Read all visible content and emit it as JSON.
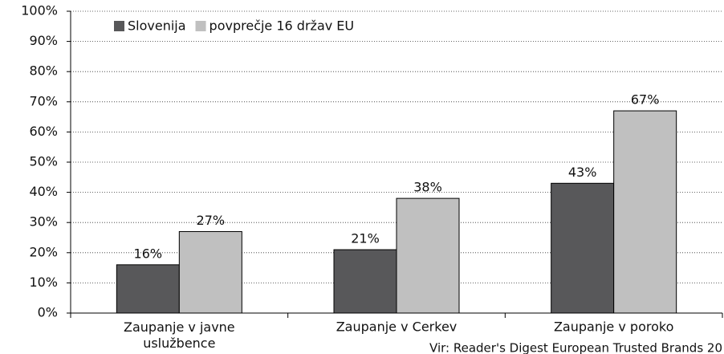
{
  "chart_data": {
    "type": "bar",
    "categories": [
      "Zaupanje v javne uslužbence",
      "Zaupanje v Cerkev",
      "Zaupanje v poroko"
    ],
    "series": [
      {
        "name": "Slovenija",
        "color": "#58585a",
        "values": [
          16,
          21,
          43
        ],
        "value_labels": [
          "16%",
          "21%",
          "43%"
        ]
      },
      {
        "name": "povprečje 16 držav EU",
        "color": "#c0c0c0",
        "values": [
          27,
          38,
          67
        ],
        "value_labels": [
          "27%",
          "38%",
          "67%"
        ]
      }
    ],
    "ylim": [
      0,
      100
    ],
    "yticks": [
      {
        "value": 0,
        "label": "0%"
      },
      {
        "value": 10,
        "label": "10%"
      },
      {
        "value": 20,
        "label": "20%"
      },
      {
        "value": 30,
        "label": "30%"
      },
      {
        "value": 40,
        "label": "40%"
      },
      {
        "value": 50,
        "label": "50%"
      },
      {
        "value": 60,
        "label": "60%"
      },
      {
        "value": 70,
        "label": "70%"
      },
      {
        "value": 80,
        "label": "80%"
      },
      {
        "value": 90,
        "label": "90%"
      },
      {
        "value": 100,
        "label": "100%"
      }
    ],
    "grid": true,
    "legend": "top-left",
    "source": "Vir: Reader's Digest European Trusted Brands 20"
  }
}
